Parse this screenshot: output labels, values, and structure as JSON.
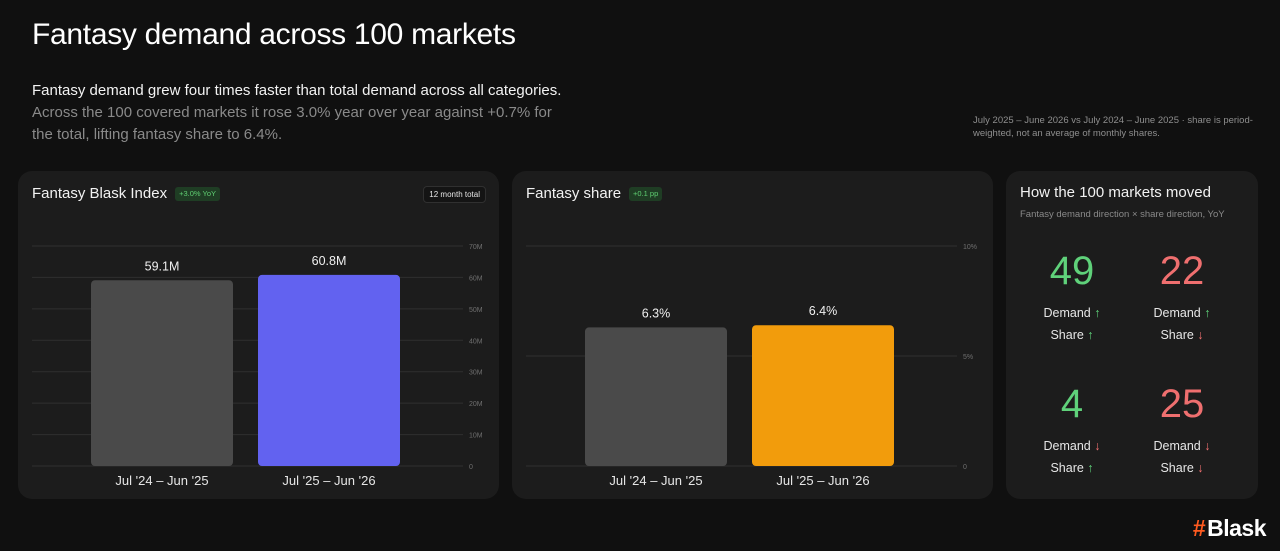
{
  "page": {
    "title": "Fantasy demand across 100 markets",
    "lead_line1": "Fantasy demand grew four times faster than total demand across all categories.",
    "lead_line2": "Across the 100 covered markets it rose 3.0% year over year against +0.7% for the total, lifting fantasy share to 6.4%.",
    "note": "July 2025 – June 2026 vs July 2024 – June 2025 · share is period-weighted, not an average of monthly shares.",
    "logo_symbol": "#",
    "logo_text": "Blask"
  },
  "colors": {
    "background": "#101010",
    "card": "#1c1c1c",
    "bar_prev": "#4a4a4a",
    "bar_index_curr": "#6262f0",
    "bar_share_curr": "#f29c0c",
    "positive": "#5fd17a",
    "negative": "#ef6f6f",
    "brand": "#ff5a1f"
  },
  "index_card": {
    "title": "Fantasy Blask Index",
    "badge": "+3.0% YoY",
    "pill": "12 month total"
  },
  "share_card": {
    "title": "Fantasy share",
    "badge": "+0.1 pp"
  },
  "moves_card": {
    "title": "How the 100 markets moved",
    "subtitle": "Fantasy demand direction × share direction, YoY",
    "demand_label": "Demand",
    "share_label": "Share",
    "up_icon": "↑",
    "down_icon": "↓",
    "quadrants": [
      {
        "count": "49",
        "demand_dir": "up",
        "share_dir": "up",
        "tone": "positive"
      },
      {
        "count": "22",
        "demand_dir": "up",
        "share_dir": "down",
        "tone": "negative"
      },
      {
        "count": "4",
        "demand_dir": "down",
        "share_dir": "up",
        "tone": "positive"
      },
      {
        "count": "25",
        "demand_dir": "down",
        "share_dir": "down",
        "tone": "negative"
      }
    ]
  },
  "chart_data": [
    {
      "type": "bar",
      "title": "Fantasy Blask Index",
      "categories": [
        "Jul '24 – Jun '25",
        "Jul '25 – Jun '26"
      ],
      "values": [
        59.1,
        60.8
      ],
      "value_labels": [
        "59.1M",
        "60.8M"
      ],
      "ylim": [
        0,
        70
      ],
      "yticks": [
        0,
        10,
        20,
        30,
        40,
        50,
        60,
        70
      ],
      "ytick_labels": [
        "0",
        "10M",
        "20M",
        "30M",
        "40M",
        "50M",
        "60M",
        "70M"
      ],
      "grid": true,
      "colors": [
        "#4a4a4a",
        "#6262f0"
      ]
    },
    {
      "type": "bar",
      "title": "Fantasy share",
      "categories": [
        "Jul '24 – Jun '25",
        "Jul '25 – Jun '26"
      ],
      "values": [
        6.3,
        6.4
      ],
      "value_labels": [
        "6.3%",
        "6.4%"
      ],
      "ylim": [
        0,
        10
      ],
      "yticks": [
        0,
        5,
        10
      ],
      "ytick_labels": [
        "0",
        "5%",
        "10%"
      ],
      "grid": true,
      "colors": [
        "#4a4a4a",
        "#f29c0c"
      ]
    }
  ]
}
